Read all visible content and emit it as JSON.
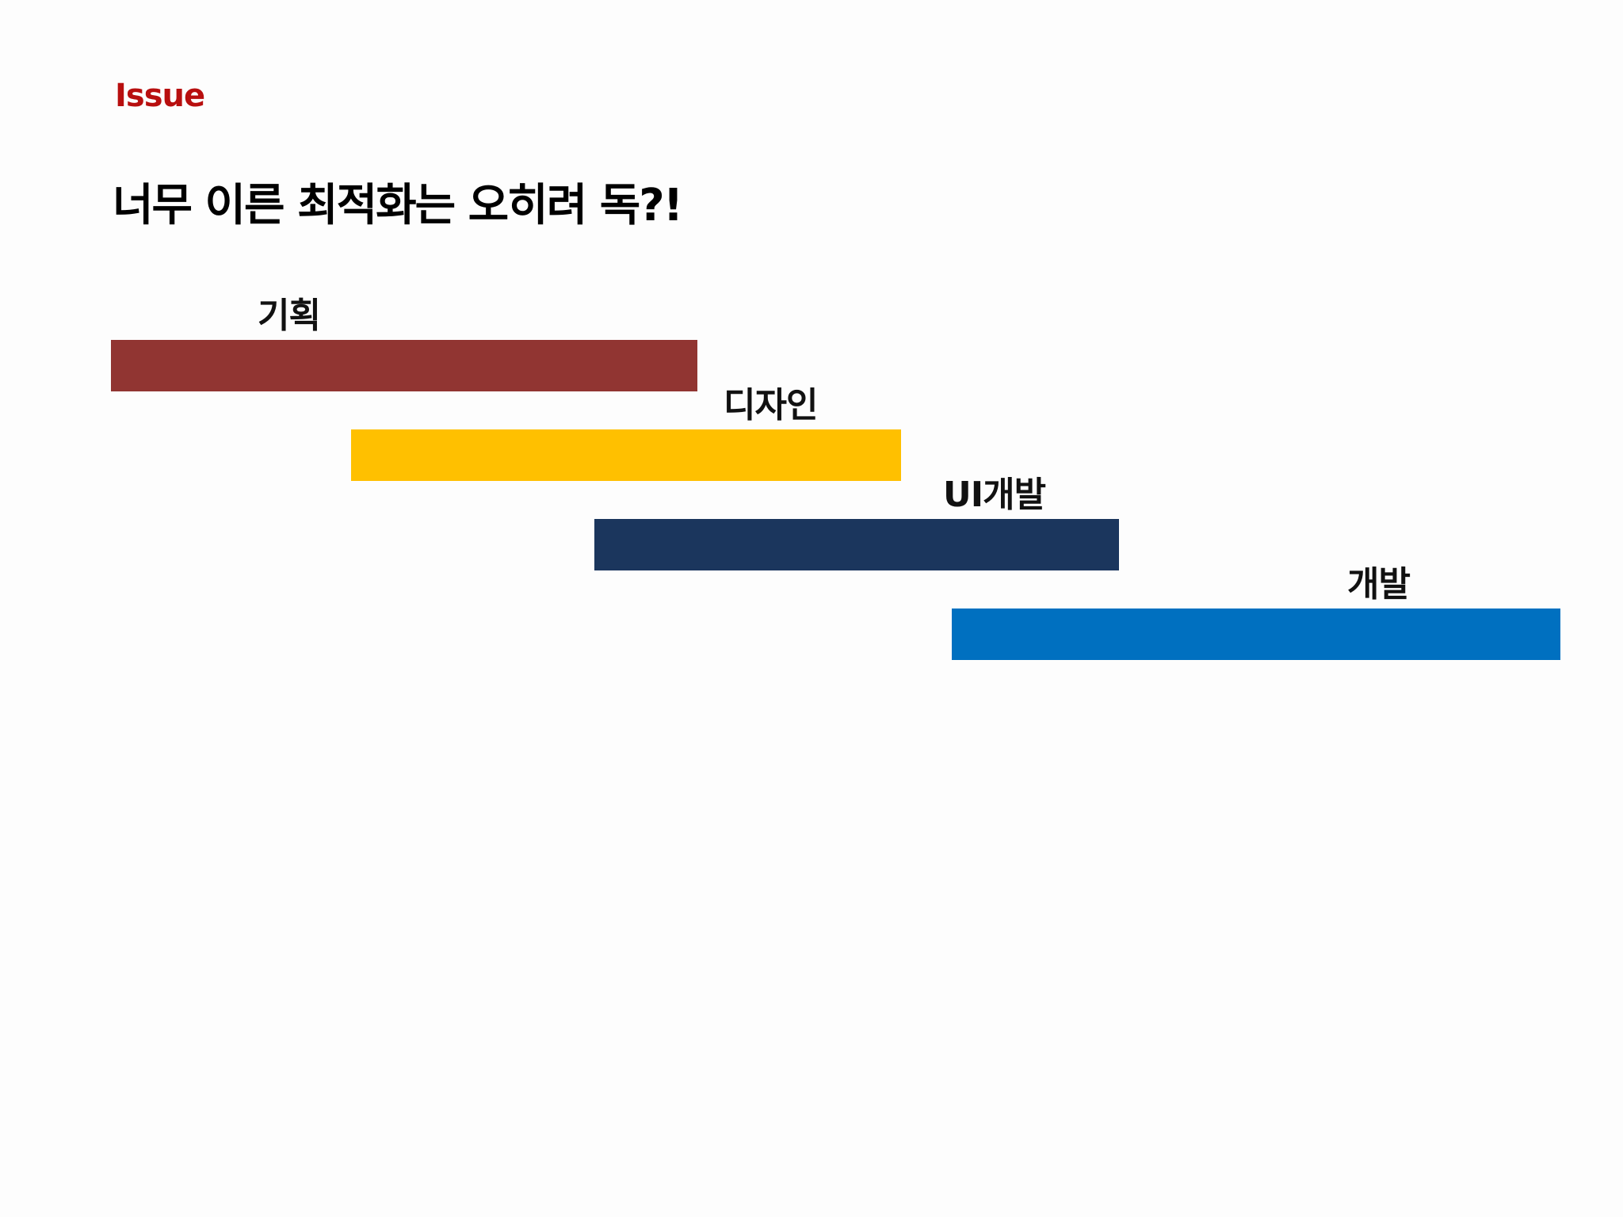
{
  "header": {
    "kicker": "Issue",
    "title": "너무 이른 최적화는 오히려 독?!"
  },
  "phases": [
    {
      "label": "기획",
      "color": "#913532"
    },
    {
      "label": "디자인",
      "color": "#ffc000"
    },
    {
      "label": "UI개발",
      "color": "#1b365d"
    },
    {
      "label": "개발",
      "color": "#0070c0"
    }
  ]
}
